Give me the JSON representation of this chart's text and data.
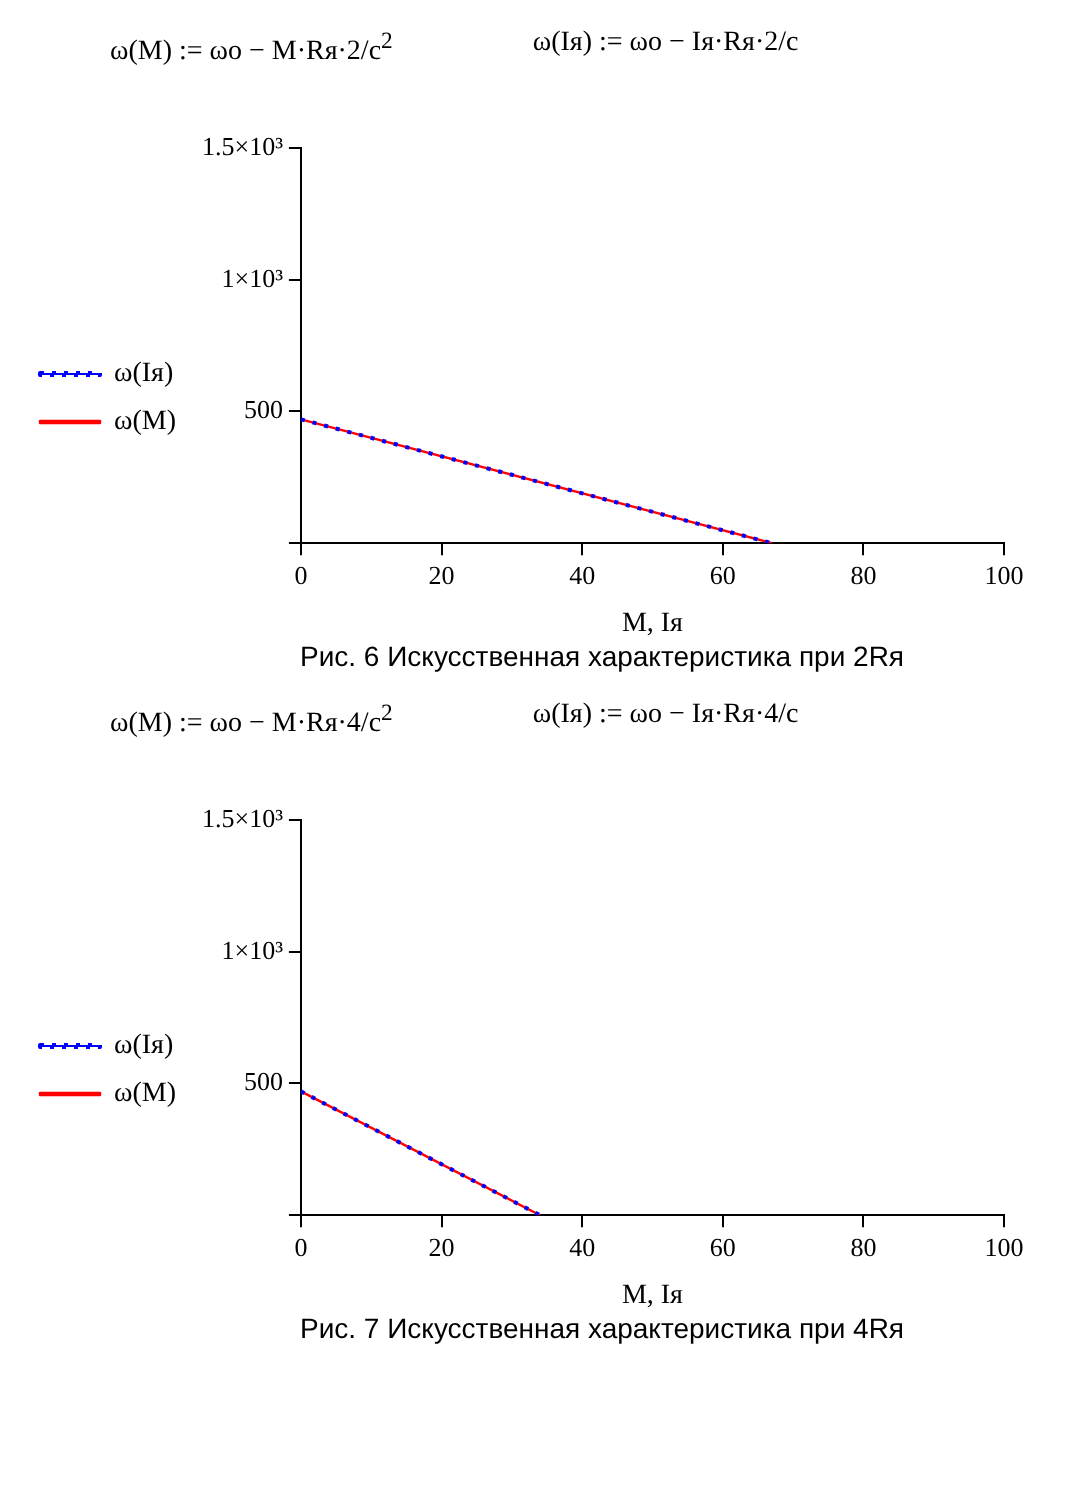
{
  "chart_data": [
    {
      "type": "line",
      "title": "Рис. 6 Искусственная характеристика при 2Rя",
      "xlabel": "M, Iя",
      "annotations": [
        "ω(M) := ωo − M·Rя·2/c$^{2}$",
        "ω(Iя) := ωo − Iя·Rя·2/c"
      ],
      "x": [
        0,
        67
      ],
      "series": [
        {
          "name": "ω(M)",
          "color": "#ff0000",
          "values": [
            470,
            0
          ],
          "line_style": "solid"
        },
        {
          "name": "ω(Iя)",
          "color": "#0000ff",
          "values": [
            470,
            0
          ],
          "line_style": "dotted"
        }
      ],
      "xlim": [
        0,
        100
      ],
      "xticks": [
        0,
        20,
        40,
        60,
        80,
        100
      ],
      "ylim": [
        0,
        1500
      ],
      "yticks": [
        {
          "value": 0,
          "label": null
        },
        500,
        {
          "value": 1000,
          "label": "1×10³"
        },
        {
          "value": 1500,
          "label": "1.5×10³"
        }
      ],
      "grid": false,
      "legend": "left",
      "marker": "none"
    },
    {
      "type": "line",
      "title": "Рис. 7 Искусственная характеристика при 4Rя",
      "xlabel": "M, Iя",
      "annotations": [
        "ω(M) := ωo − M·Rя·4/c$^{2}$",
        "ω(Iя) := ωo − Iя·Rя·4/c"
      ],
      "x": [
        0,
        34
      ],
      "series": [
        {
          "name": "ω(M)",
          "color": "#ff0000",
          "values": [
            470,
            0
          ],
          "line_style": "solid"
        },
        {
          "name": "ω(Iя)",
          "color": "#0000ff",
          "values": [
            470,
            0
          ],
          "line_style": "dotted"
        }
      ],
      "xlim": [
        0,
        100
      ],
      "xticks": [
        0,
        20,
        40,
        60,
        80,
        100
      ],
      "ylim": [
        0,
        1500
      ],
      "yticks": [
        {
          "value": 0,
          "label": null
        },
        500,
        {
          "value": 1000,
          "label": "1×10³"
        },
        {
          "value": 1500,
          "label": "1.5×10³"
        }
      ],
      "grid": false,
      "legend": "left",
      "marker": "none"
    }
  ]
}
